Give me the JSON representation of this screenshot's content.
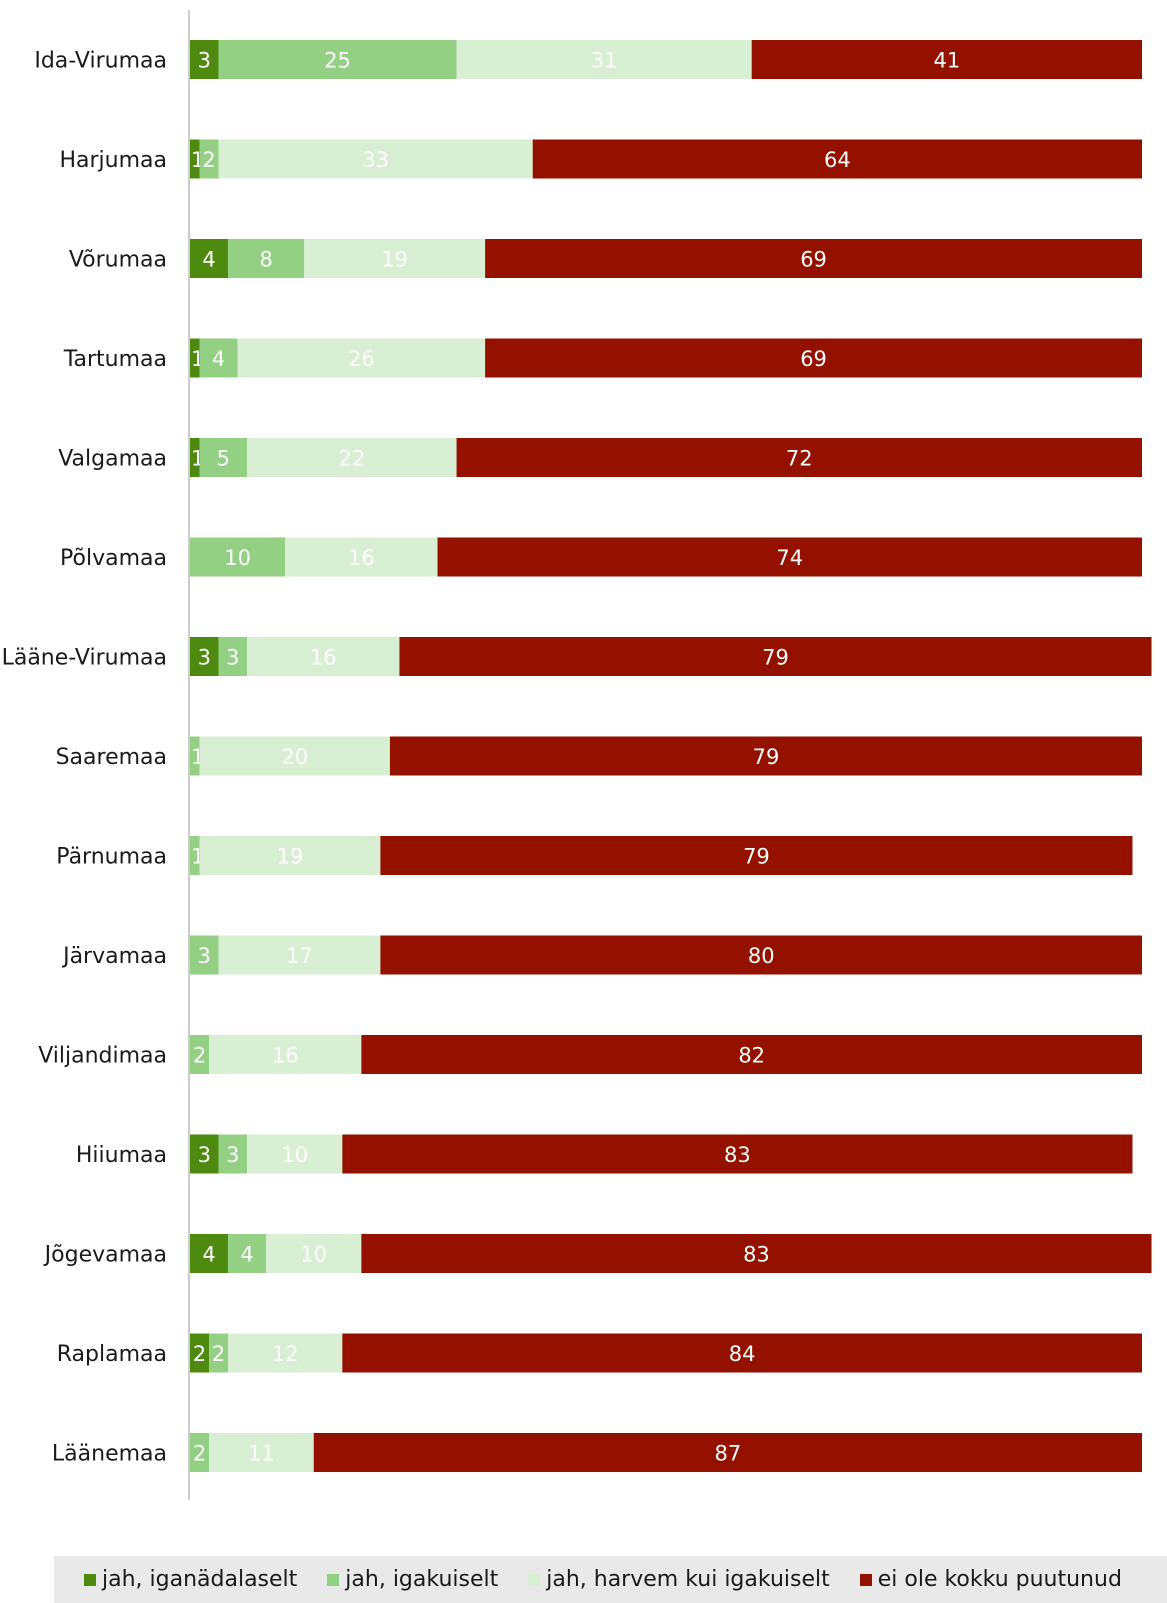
{
  "chart_data": {
    "type": "bar",
    "orientation": "horizontal",
    "stacked": true,
    "categories": [
      "Ida-Virumaa",
      "Harjumaa",
      "Võrumaa",
      "Tartumaa",
      "Valgamaa",
      "Põlvamaa",
      "Lääne-Virumaa",
      "Saaremaa",
      "Pärnumaa",
      "Järvamaa",
      "Viljandimaa",
      "Hiiumaa",
      "Jõgevamaa",
      "Raplamaa",
      "Läänemaa"
    ],
    "series": [
      {
        "name": "jah, iganädalaselt",
        "color": "#4f8a10",
        "label_color": "#ffffff",
        "values": [
          3,
          1,
          4,
          1,
          1,
          0,
          3,
          0,
          0,
          0,
          0,
          3,
          4,
          2,
          0
        ]
      },
      {
        "name": "jah, igakuiselt",
        "color": "#93d083",
        "label_color": "#ffffff",
        "values": [
          25,
          2,
          8,
          4,
          5,
          10,
          3,
          1,
          1,
          3,
          2,
          3,
          4,
          2,
          2
        ]
      },
      {
        "name": "jah, harvem kui igakuiselt",
        "color": "#d8efd4",
        "label_color": "#ffffff",
        "values": [
          31,
          33,
          19,
          26,
          22,
          16,
          16,
          20,
          19,
          17,
          16,
          10,
          10,
          12,
          11
        ]
      },
      {
        "name": "ei ole kokku puutunud",
        "color": "#941100",
        "label_color": "#ffffff",
        "values": [
          41,
          64,
          69,
          69,
          72,
          74,
          79,
          79,
          79,
          80,
          82,
          83,
          83,
          84,
          87
        ]
      }
    ],
    "xlim": [
      0,
      100
    ],
    "grid": false,
    "legend_position": "bottom"
  }
}
